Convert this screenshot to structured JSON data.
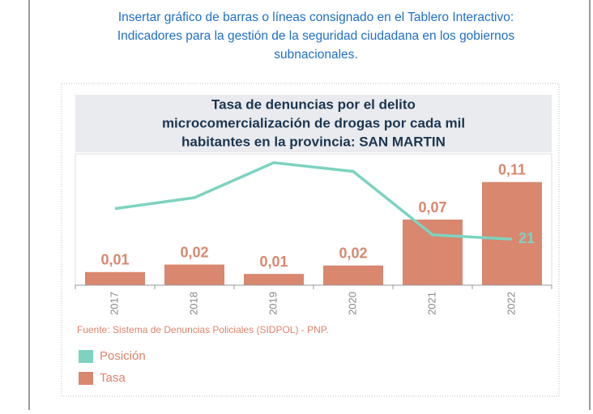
{
  "header": {
    "lines": [
      "Insertar gráfico de barras o líneas consignado en el Tablero Interactivo:",
      "Indicadores para la gestión de la seguridad ciudadana en los gobiernos",
      "subnacionales."
    ]
  },
  "chart_data": {
    "type": "bar-line",
    "title_lines": [
      "Tasa de denuncias por el delito",
      "microcomercialización de drogas por cada mil",
      "habitantes en la provincia: SAN MARTIN"
    ],
    "categories": [
      "2017",
      "2018",
      "2019",
      "2020",
      "2021",
      "2022"
    ],
    "series": [
      {
        "name": "Posición",
        "color": "#7dd3c0",
        "axis": "y2",
        "values": [
          35,
          40,
          56,
          52,
          23,
          21
        ],
        "label_last": true
      },
      {
        "name": "Tasa",
        "color": "#d9876e",
        "values": [
          0.014,
          0.022,
          0.012,
          0.021,
          0.07,
          0.11
        ],
        "value_labels": [
          "0,01",
          "0,02",
          "0,01",
          "0,02",
          "0,07",
          "0,11"
        ]
      }
    ],
    "ylim": [
      0,
      0.14
    ],
    "y2lim": [
      0,
      60
    ],
    "source": "Fuente: Sistema de Denuncias Policiales (SIDPOL) - PNP."
  }
}
